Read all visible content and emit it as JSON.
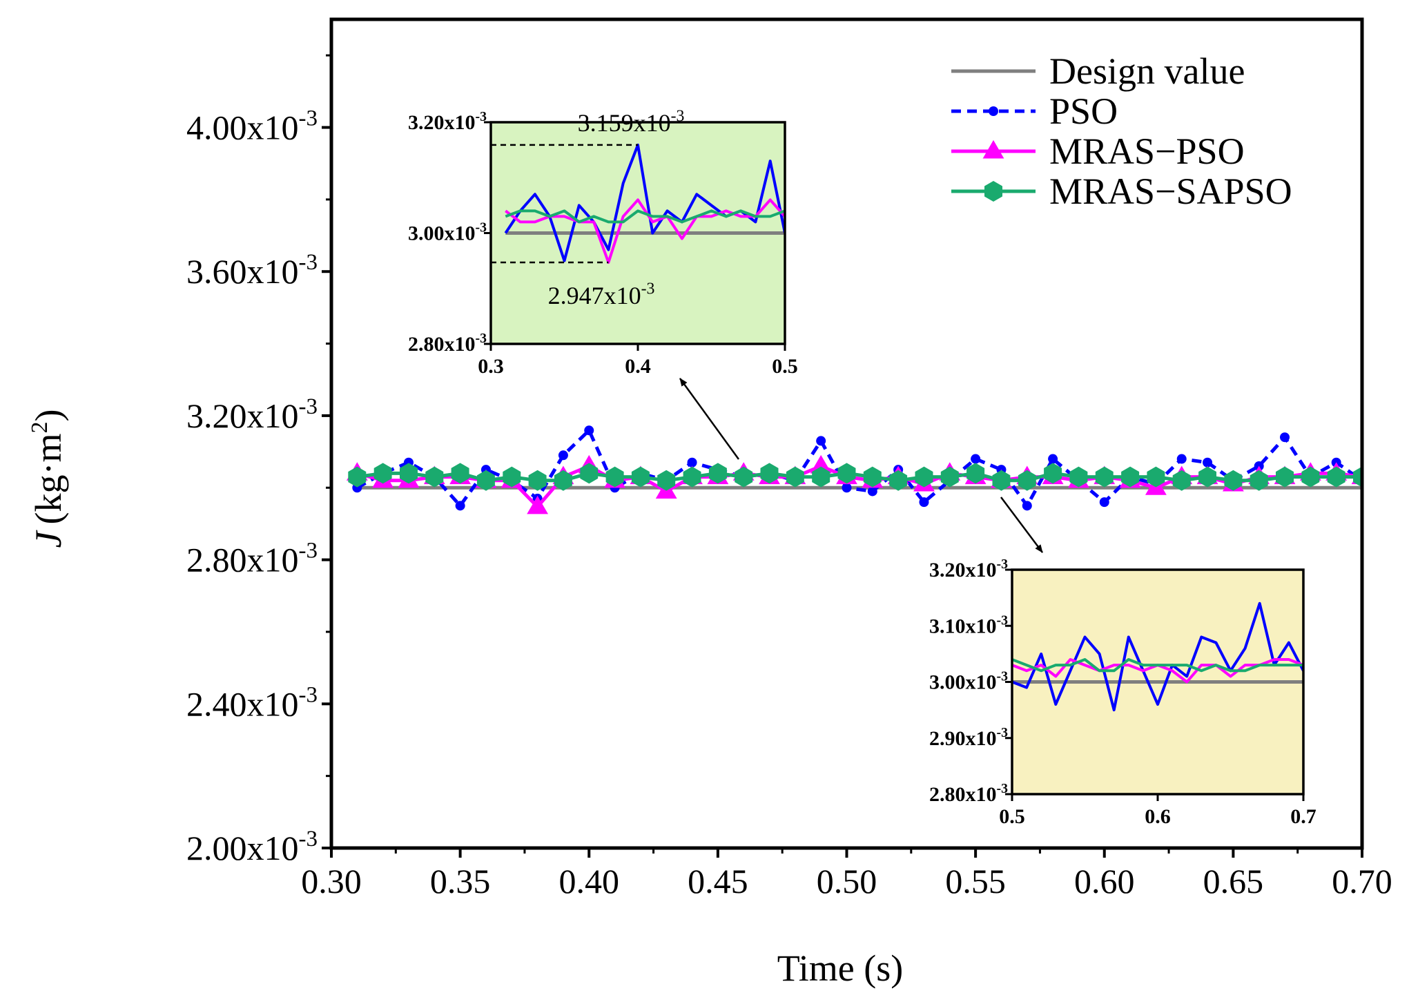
{
  "chart_data": {
    "type": "line",
    "title": "",
    "xlabel": "Time (s)",
    "ylabel": {
      "var": "J",
      "unit": "(kg·m",
      "exp": "2",
      "close": ")"
    },
    "xlim": [
      0.3,
      0.7
    ],
    "ylim": [
      0.002,
      0.0043
    ],
    "x_ticks": [
      0.3,
      0.35,
      0.4,
      0.45,
      0.5,
      0.55,
      0.6,
      0.65,
      0.7
    ],
    "x_tick_labels": [
      "0.30",
      "0.35",
      "0.40",
      "0.45",
      "0.50",
      "0.55",
      "0.60",
      "0.65",
      "0.70"
    ],
    "y_ticks": [
      0.002,
      0.0024,
      0.0028,
      0.0032,
      0.0036,
      0.004
    ],
    "y_tick_labels": [
      {
        "mant": "2.00x10",
        "exp": "-3"
      },
      {
        "mant": "2.40x10",
        "exp": "-3"
      },
      {
        "mant": "2.80x10",
        "exp": "-3"
      },
      {
        "mant": "3.20x10",
        "exp": "-3"
      },
      {
        "mant": "3.60x10",
        "exp": "-3"
      },
      {
        "mant": "4.00x10",
        "exp": "-3"
      }
    ],
    "x": [
      0.31,
      0.32,
      0.33,
      0.34,
      0.35,
      0.36,
      0.37,
      0.38,
      0.39,
      0.4,
      0.41,
      0.42,
      0.43,
      0.44,
      0.45,
      0.46,
      0.47,
      0.48,
      0.49,
      0.5,
      0.51,
      0.52,
      0.53,
      0.54,
      0.55,
      0.56,
      0.57,
      0.58,
      0.59,
      0.6,
      0.61,
      0.62,
      0.63,
      0.64,
      0.65,
      0.66,
      0.67,
      0.68,
      0.69,
      0.7
    ],
    "series": [
      {
        "name": "Design value",
        "color": "#7f7f7f",
        "style": "solid",
        "marker": "none",
        "values": [
          0.003,
          0.003,
          0.003,
          0.003,
          0.003,
          0.003,
          0.003,
          0.003,
          0.003,
          0.003,
          0.003,
          0.003,
          0.003,
          0.003,
          0.003,
          0.003,
          0.003,
          0.003,
          0.003,
          0.003,
          0.003,
          0.003,
          0.003,
          0.003,
          0.003,
          0.003,
          0.003,
          0.003,
          0.003,
          0.003,
          0.003,
          0.003,
          0.003,
          0.003,
          0.003,
          0.003,
          0.003,
          0.003,
          0.003,
          0.003
        ]
      },
      {
        "name": "PSO",
        "color": "#0000ff",
        "style": "dashed",
        "marker": "circle",
        "values": [
          0.003,
          0.00304,
          0.00307,
          0.00303,
          0.00295,
          0.00305,
          0.00302,
          0.00297,
          0.00309,
          0.003159,
          0.003,
          0.00304,
          0.00302,
          0.00307,
          0.00305,
          0.00303,
          0.00304,
          0.00302,
          0.00313,
          0.003,
          0.00299,
          0.00305,
          0.00296,
          0.00302,
          0.00308,
          0.00305,
          0.00295,
          0.00308,
          0.00302,
          0.00296,
          0.00303,
          0.00301,
          0.00308,
          0.00307,
          0.00302,
          0.00306,
          0.00314,
          0.00303,
          0.00307,
          0.00302
        ]
      },
      {
        "name": "MRAS−PSO",
        "color": "#ff00ff",
        "style": "solid",
        "marker": "triangle",
        "values": [
          0.00304,
          0.00302,
          0.00302,
          0.00303,
          0.00303,
          0.00302,
          0.00302,
          0.002947,
          0.00303,
          0.00306,
          0.00302,
          0.00303,
          0.00299,
          0.00303,
          0.00303,
          0.00304,
          0.00303,
          0.00303,
          0.00306,
          0.00303,
          0.00302,
          0.00303,
          0.00301,
          0.00304,
          0.00303,
          0.00302,
          0.00303,
          0.00303,
          0.00302,
          0.00303,
          0.00302,
          0.003,
          0.00303,
          0.00303,
          0.00301,
          0.00303,
          0.00303,
          0.00304,
          0.00304,
          0.00303
        ]
      },
      {
        "name": "MRAS−SAPSO",
        "color": "#1aaa6e",
        "style": "solid",
        "marker": "hexagon",
        "values": [
          0.00303,
          0.00304,
          0.00304,
          0.00303,
          0.00304,
          0.00302,
          0.00303,
          0.00302,
          0.00302,
          0.00304,
          0.00303,
          0.00303,
          0.00302,
          0.00303,
          0.00304,
          0.00303,
          0.00304,
          0.00303,
          0.00303,
          0.00304,
          0.00303,
          0.00302,
          0.00303,
          0.00303,
          0.00304,
          0.00302,
          0.00302,
          0.00304,
          0.00303,
          0.00303,
          0.00303,
          0.00303,
          0.00302,
          0.00303,
          0.00302,
          0.00302,
          0.00303,
          0.00303,
          0.00303,
          0.00303
        ]
      }
    ],
    "legend_position": "top-right",
    "insets": [
      {
        "name": "inset-early",
        "background": "#d8f3c0",
        "x_range": [
          0.3,
          0.5
        ],
        "y_range": [
          0.0028,
          0.0032
        ],
        "x_ticks": [
          0.3,
          0.4,
          0.5
        ],
        "x_tick_labels": [
          "0.3",
          "0.4",
          "0.5"
        ],
        "y_ticks": [
          0.0028,
          0.003,
          0.0032
        ],
        "y_tick_labels": [
          {
            "mant": "2.80x10",
            "exp": "-3"
          },
          {
            "mant": "3.00x10",
            "exp": "-3"
          },
          {
            "mant": "3.20x10",
            "exp": "-3"
          }
        ],
        "annotations": [
          {
            "name": "max-annotation",
            "x": 0.4,
            "y": 0.003159,
            "mant": "3.159x10",
            "exp": "-3"
          },
          {
            "name": "min-annotation",
            "x": 0.38,
            "y": 0.002947,
            "mant": "2.947x10",
            "exp": "-3"
          }
        ]
      },
      {
        "name": "inset-late",
        "background": "#f8f1c0",
        "x_range": [
          0.5,
          0.7
        ],
        "y_range": [
          0.0028,
          0.0032
        ],
        "x_ticks": [
          0.5,
          0.6,
          0.7
        ],
        "x_tick_labels": [
          "0.5",
          "0.6",
          "0.7"
        ],
        "y_ticks": [
          0.0028,
          0.0029,
          0.003,
          0.0031,
          0.0032
        ],
        "y_tick_labels": [
          {
            "mant": "2.80x10",
            "exp": "-3"
          },
          {
            "mant": "2.90x10",
            "exp": "-3"
          },
          {
            "mant": "3.00x10",
            "exp": "-3"
          },
          {
            "mant": "3.10x10",
            "exp": "-3"
          },
          {
            "mant": "3.20x10",
            "exp": "-3"
          }
        ],
        "annotations": []
      }
    ]
  }
}
